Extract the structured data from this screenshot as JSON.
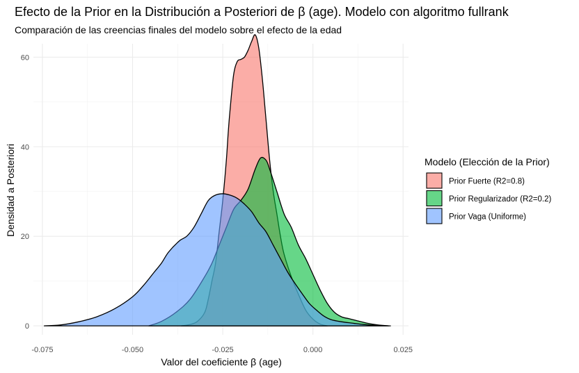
{
  "chart_data": {
    "type": "area",
    "title": "Efecto de la Prior en la Distribución a Posteriori de β (age). Modelo con algoritmo fullrank",
    "subtitle": "Comparación de las creencias finales del modelo sobre el efecto de la edad",
    "xlabel": "Valor del coeficiente β (age)",
    "ylabel": "Densidad a Posteriori",
    "xlim": [
      -0.0775,
      0.0265
    ],
    "ylim": [
      -2,
      63
    ],
    "x_ticks": [
      "-0.075",
      "-0.050",
      "-0.025",
      "0.000",
      "0.025"
    ],
    "x_tick_values": [
      -0.075,
      -0.05,
      -0.025,
      0.0,
      0.025
    ],
    "y_ticks": [
      "0",
      "20",
      "40",
      "60"
    ],
    "y_tick_values": [
      0,
      20,
      40,
      60
    ],
    "grid": true,
    "legend": {
      "title": "Modelo (Elección de la Prior)",
      "position": "right"
    },
    "series": [
      {
        "name": "Prior Fuerte (R2=0.8)",
        "color": "#F8766D",
        "x": [
          -0.0365,
          -0.034,
          -0.032,
          -0.03,
          -0.029,
          -0.028,
          -0.027,
          -0.026,
          -0.025,
          -0.024,
          -0.0235,
          -0.023,
          -0.022,
          -0.021,
          -0.02,
          -0.019,
          -0.018,
          -0.017,
          -0.016,
          -0.015,
          -0.014,
          -0.013,
          -0.012,
          -0.011,
          -0.01,
          -0.009,
          -0.008,
          -0.006,
          -0.004,
          -0.002,
          0.0,
          0.002,
          0.004
        ],
        "values": [
          0,
          0.3,
          1,
          3,
          6,
          10,
          14,
          21,
          28,
          37,
          43,
          48,
          56,
          59,
          59.5,
          60,
          61.5,
          63.5,
          65,
          62,
          55,
          46,
          37,
          30,
          25,
          20,
          16,
          11,
          7,
          3.5,
          1.5,
          0.4,
          0
        ]
      },
      {
        "name": "Prior Regularizador (R2=0.2)",
        "color": "#00BA38",
        "x": [
          -0.0455,
          -0.042,
          -0.038,
          -0.034,
          -0.03,
          -0.028,
          -0.026,
          -0.024,
          -0.022,
          -0.02,
          -0.018,
          -0.016,
          -0.0145,
          -0.013,
          -0.012,
          -0.01,
          -0.008,
          -0.006,
          -0.004,
          -0.002,
          0.0,
          0.002,
          0.004,
          0.006,
          0.008,
          0.01,
          0.012,
          0.015,
          0.018,
          0.021
        ],
        "values": [
          0,
          1,
          3,
          6,
          11,
          14,
          18,
          22,
          26,
          28,
          30.5,
          35,
          37.5,
          37,
          35,
          30,
          25,
          22,
          18,
          15,
          11.5,
          8,
          5,
          3,
          2,
          1.6,
          1.2,
          0.6,
          0.2,
          0
        ]
      },
      {
        "name": "Prior Vaga (Uniforme)",
        "color": "#619CFF",
        "x": [
          -0.0745,
          -0.07,
          -0.065,
          -0.06,
          -0.055,
          -0.05,
          -0.047,
          -0.044,
          -0.042,
          -0.04,
          -0.037,
          -0.035,
          -0.033,
          -0.031,
          -0.029,
          -0.027,
          -0.025,
          -0.023,
          -0.021,
          -0.019,
          -0.017,
          -0.015,
          -0.013,
          -0.011,
          -0.009,
          -0.007,
          -0.005,
          -0.003,
          -0.001,
          0.001,
          0.003,
          0.005,
          0.008,
          0.011,
          0.014,
          0.018,
          0.0215
        ],
        "values": [
          0,
          0.2,
          0.9,
          2,
          3.8,
          6.5,
          9,
          12,
          14,
          16.5,
          19,
          20,
          22,
          25,
          28,
          29.2,
          29.5,
          29.2,
          28.5,
          27.2,
          25.5,
          23,
          21,
          18,
          15,
          12,
          9.5,
          7.2,
          5,
          3.5,
          2.2,
          1.4,
          0.9,
          0.6,
          0.3,
          0.1,
          0
        ]
      }
    ]
  }
}
